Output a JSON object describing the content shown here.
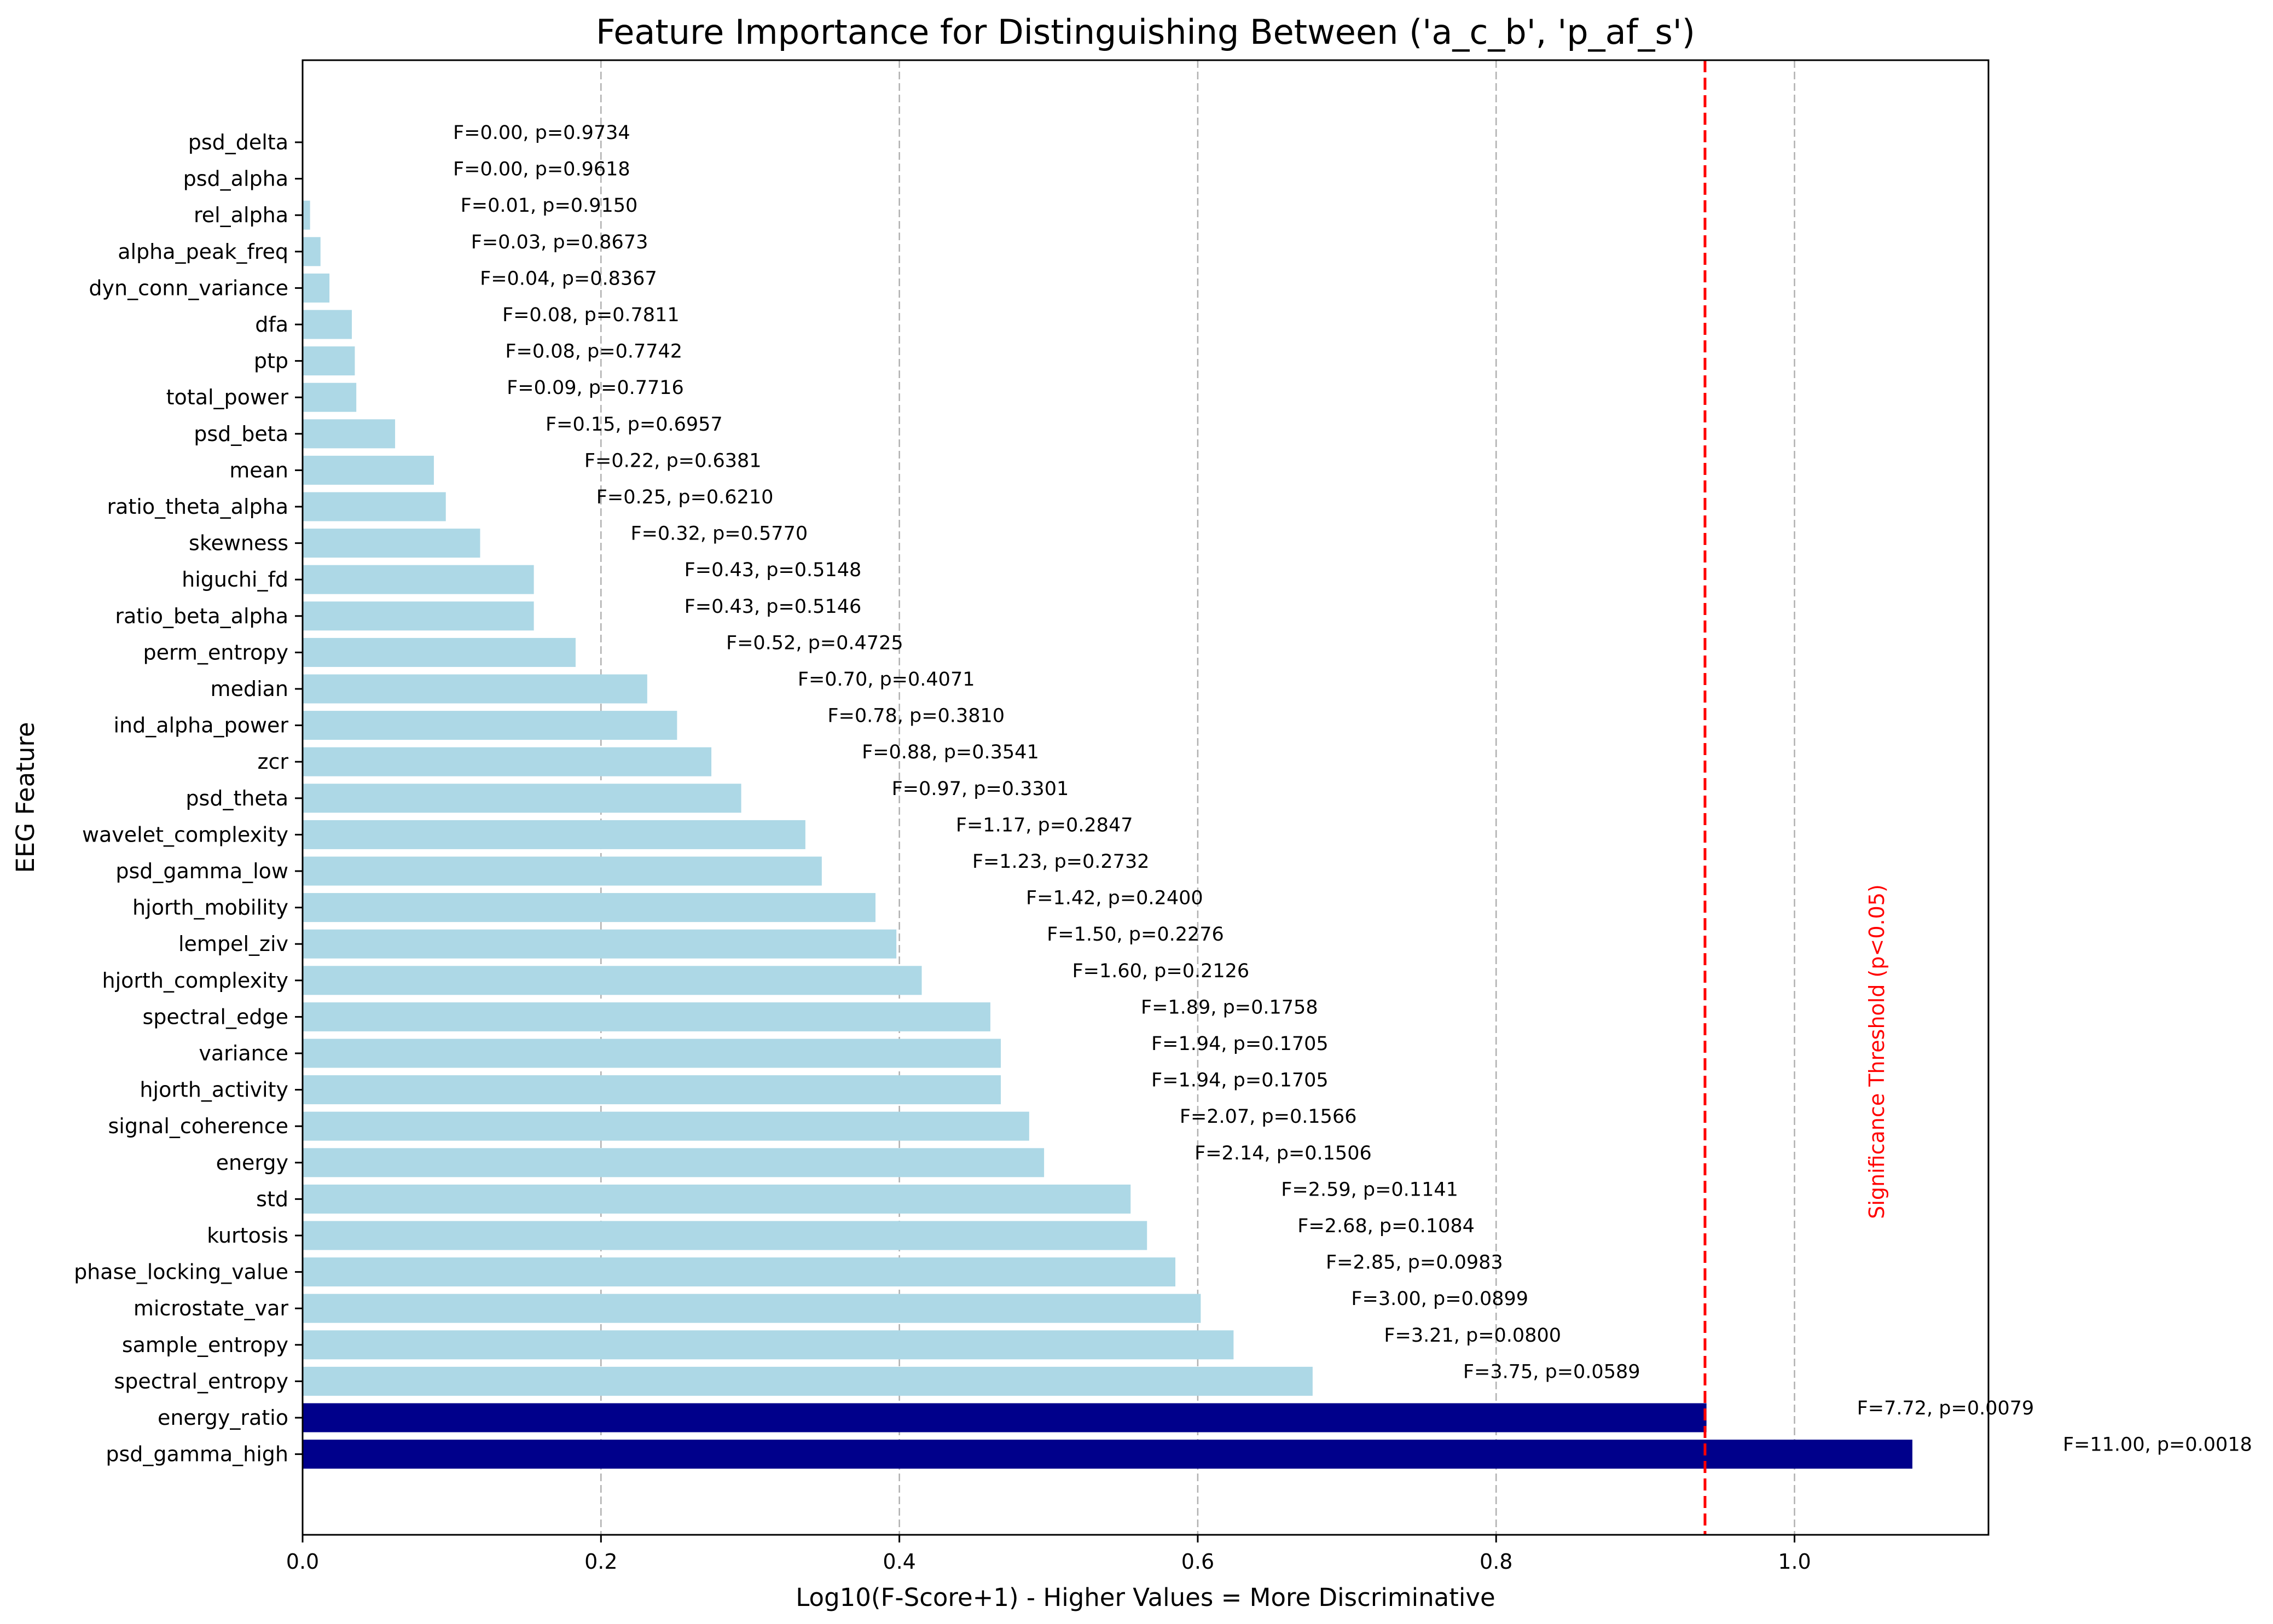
{
  "chart_data": {
    "type": "bar",
    "orientation": "horizontal",
    "title": "Feature Importance for Distinguishing Between ('a_c_b', 'p_af_s')",
    "xlabel": "Log10(F-Score+1) - Higher Values = More Discriminative",
    "ylabel": "EEG Feature",
    "xlim": [
      0,
      1.13
    ],
    "x_ticks": [
      "0.0",
      "0.2",
      "0.4",
      "0.6",
      "0.8",
      "1.0"
    ],
    "grid": "vertical dashed",
    "colors": {
      "normal": "#add8e6",
      "significant": "#00008b",
      "threshold": "#ff0000",
      "grid": "#b0b0b0"
    },
    "threshold": {
      "value": 0.94,
      "label": "Significance Threshold (p<0.05)"
    },
    "bars": [
      {
        "feature": "psd_delta",
        "value": 0.0,
        "label": "F=0.00, p=0.9734",
        "significant": false
      },
      {
        "feature": "psd_alpha",
        "value": 0.0,
        "label": "F=0.00, p=0.9618",
        "significant": false
      },
      {
        "feature": "rel_alpha",
        "value": 0.005,
        "label": "F=0.01, p=0.9150",
        "significant": false
      },
      {
        "feature": "alpha_peak_freq",
        "value": 0.012,
        "label": "F=0.03, p=0.8673",
        "significant": false
      },
      {
        "feature": "dyn_conn_variance",
        "value": 0.018,
        "label": "F=0.04, p=0.8367",
        "significant": false
      },
      {
        "feature": "dfa",
        "value": 0.033,
        "label": "F=0.08, p=0.7811",
        "significant": false
      },
      {
        "feature": "ptp",
        "value": 0.035,
        "label": "F=0.08, p=0.7742",
        "significant": false
      },
      {
        "feature": "total_power",
        "value": 0.036,
        "label": "F=0.09, p=0.7716",
        "significant": false
      },
      {
        "feature": "psd_beta",
        "value": 0.062,
        "label": "F=0.15, p=0.6957",
        "significant": false
      },
      {
        "feature": "mean",
        "value": 0.088,
        "label": "F=0.22, p=0.6381",
        "significant": false
      },
      {
        "feature": "ratio_theta_alpha",
        "value": 0.096,
        "label": "F=0.25, p=0.6210",
        "significant": false
      },
      {
        "feature": "skewness",
        "value": 0.119,
        "label": "F=0.32, p=0.5770",
        "significant": false
      },
      {
        "feature": "higuchi_fd",
        "value": 0.155,
        "label": "F=0.43, p=0.5148",
        "significant": false
      },
      {
        "feature": "ratio_beta_alpha",
        "value": 0.155,
        "label": "F=0.43, p=0.5146",
        "significant": false
      },
      {
        "feature": "perm_entropy",
        "value": 0.183,
        "label": "F=0.52, p=0.4725",
        "significant": false
      },
      {
        "feature": "median",
        "value": 0.231,
        "label": "F=0.70, p=0.4071",
        "significant": false
      },
      {
        "feature": "ind_alpha_power",
        "value": 0.251,
        "label": "F=0.78, p=0.3810",
        "significant": false
      },
      {
        "feature": "zcr",
        "value": 0.274,
        "label": "F=0.88, p=0.3541",
        "significant": false
      },
      {
        "feature": "psd_theta",
        "value": 0.294,
        "label": "F=0.97, p=0.3301",
        "significant": false
      },
      {
        "feature": "wavelet_complexity",
        "value": 0.337,
        "label": "F=1.17, p=0.2847",
        "significant": false
      },
      {
        "feature": "psd_gamma_low",
        "value": 0.348,
        "label": "F=1.23, p=0.2732",
        "significant": false
      },
      {
        "feature": "hjorth_mobility",
        "value": 0.384,
        "label": "F=1.42, p=0.2400",
        "significant": false
      },
      {
        "feature": "lempel_ziv",
        "value": 0.398,
        "label": "F=1.50, p=0.2276",
        "significant": false
      },
      {
        "feature": "hjorth_complexity",
        "value": 0.415,
        "label": "F=1.60, p=0.2126",
        "significant": false
      },
      {
        "feature": "spectral_edge",
        "value": 0.461,
        "label": "F=1.89, p=0.1758",
        "significant": false
      },
      {
        "feature": "variance",
        "value": 0.468,
        "label": "F=1.94, p=0.1705",
        "significant": false
      },
      {
        "feature": "hjorth_activity",
        "value": 0.468,
        "label": "F=1.94, p=0.1705",
        "significant": false
      },
      {
        "feature": "signal_coherence",
        "value": 0.487,
        "label": "F=2.07, p=0.1566",
        "significant": false
      },
      {
        "feature": "energy",
        "value": 0.497,
        "label": "F=2.14, p=0.1506",
        "significant": false
      },
      {
        "feature": "std",
        "value": 0.555,
        "label": "F=2.59, p=0.1141",
        "significant": false
      },
      {
        "feature": "kurtosis",
        "value": 0.566,
        "label": "F=2.68, p=0.1084",
        "significant": false
      },
      {
        "feature": "phase_locking_value",
        "value": 0.585,
        "label": "F=2.85, p=0.0983",
        "significant": false
      },
      {
        "feature": "microstate_var",
        "value": 0.602,
        "label": "F=3.00, p=0.0899",
        "significant": false
      },
      {
        "feature": "sample_entropy",
        "value": 0.624,
        "label": "F=3.21, p=0.0800",
        "significant": false
      },
      {
        "feature": "spectral_entropy",
        "value": 0.677,
        "label": "F=3.75, p=0.0589",
        "significant": false
      },
      {
        "feature": "energy_ratio",
        "value": 0.941,
        "label": "F=7.72, p=0.0079",
        "significant": true
      },
      {
        "feature": "psd_gamma_high",
        "value": 1.079,
        "label": "F=11.00, p=0.0018",
        "significant": true
      }
    ]
  }
}
